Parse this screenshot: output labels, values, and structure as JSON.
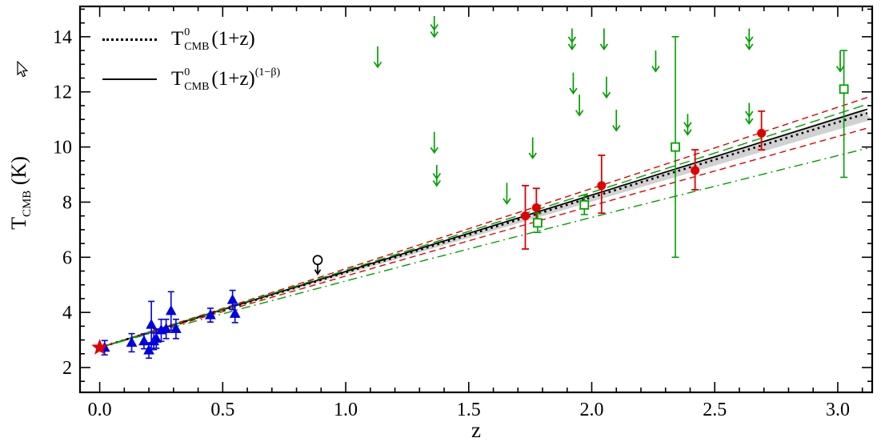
{
  "figure": {
    "x_axis_label": "z",
    "y_axis_label": {
      "base": "T",
      "sub": "CMB",
      "rest": " (K)"
    }
  },
  "legend": {
    "entries": [
      {
        "sample": "dotted",
        "base": "T",
        "sup": "0",
        "sub": "CMB",
        "factor": "(1+z)",
        "exponent": ""
      },
      {
        "sample": "solid",
        "base": "T",
        "sup": "0",
        "sub": "CMB",
        "factor": "(1+z)",
        "exponent": "(1−β)"
      }
    ]
  },
  "chart_data": {
    "type": "scatter",
    "title": "",
    "xlabel": "z",
    "ylabel": "T_CMB (K)",
    "xlim": [
      -0.08,
      3.14
    ],
    "ylim": [
      1.1,
      15.1
    ],
    "grid": false,
    "legend_position": "top-left",
    "x_ticks": {
      "major": [
        0.0,
        0.5,
        1.0,
        1.5,
        2.0,
        2.5,
        3.0
      ],
      "labels": [
        "0.0",
        "0.5",
        "1.0",
        "1.5",
        "2.0",
        "2.5",
        "3.0"
      ],
      "minor_step": 0.1
    },
    "y_ticks": {
      "major": [
        2,
        4,
        6,
        8,
        10,
        12,
        14
      ],
      "labels": [
        "2",
        "4",
        "6",
        "8",
        "10",
        "12",
        "14"
      ],
      "minor_step": 0.5
    },
    "T0": 2.725,
    "band": {
      "beta_lo": 0.018,
      "beta_hi": -0.012,
      "color": "#c6c6c6"
    },
    "lines": [
      {
        "name": "model-adiabatic-dotted",
        "label": "T0(1+z)",
        "beta": 0.0,
        "color": "#000000",
        "dash": "dotted",
        "width": 2.6
      },
      {
        "name": "model-bestfit-solid",
        "label": "T0(1+z)^(1-b)",
        "beta": -0.009,
        "color": "#000000",
        "dash": "solid",
        "width": 1.7
      },
      {
        "name": "red-upper-bound-dashed",
        "label": "",
        "beta": -0.035,
        "color": "#e00000",
        "dash": "dashed",
        "width": 1.4
      },
      {
        "name": "red-lower-bound-dashed",
        "label": "",
        "beta": 0.035,
        "color": "#e00000",
        "dash": "dashed",
        "width": 1.4
      },
      {
        "name": "green-upper-bound-dash",
        "label": "",
        "beta": -0.02,
        "color": "#00a000",
        "dash": "longdash",
        "width": 1.4
      },
      {
        "name": "green-lower-bound-dashdot",
        "label": "",
        "beta": 0.085,
        "color": "#00a000",
        "dash": "dashdot",
        "width": 1.4
      }
    ],
    "points": {
      "local_star": {
        "z": 0.0,
        "T": 2.725,
        "color": "#e00000"
      },
      "sz_clusters": [
        {
          "z": 0.02,
          "T": 2.72,
          "err": 0.26
        },
        {
          "z": 0.13,
          "T": 2.9,
          "err": 0.33
        },
        {
          "z": 0.18,
          "T": 2.95,
          "err": 0.27
        },
        {
          "z": 0.2,
          "T": 2.62,
          "err": 0.28
        },
        {
          "z": 0.21,
          "T": 3.55,
          "err": 0.85
        },
        {
          "z": 0.22,
          "T": 2.95,
          "err": 0.3
        },
        {
          "z": 0.23,
          "T": 3.05,
          "err": 0.35
        },
        {
          "z": 0.25,
          "T": 3.35,
          "err": 0.4
        },
        {
          "z": 0.27,
          "T": 3.4,
          "err": 0.35
        },
        {
          "z": 0.29,
          "T": 4.05,
          "err": 0.7
        },
        {
          "z": 0.31,
          "T": 3.4,
          "err": 0.35
        },
        {
          "z": 0.45,
          "T": 3.9,
          "err": 0.25
        },
        {
          "z": 0.54,
          "T": 4.45,
          "err": 0.35
        },
        {
          "z": 0.55,
          "T": 3.95,
          "err": 0.32
        }
      ],
      "co_absorption": [
        {
          "z": 1.73,
          "T": 7.5,
          "up": 1.1,
          "dn": 1.2
        },
        {
          "z": 1.775,
          "T": 7.8,
          "up": 0.7,
          "dn": 0.6
        },
        {
          "z": 2.04,
          "T": 8.6,
          "up": 1.1,
          "dn": 1.0
        },
        {
          "z": 2.42,
          "T": 9.15,
          "up": 0.75,
          "dn": 0.7
        },
        {
          "z": 2.69,
          "T": 10.5,
          "up": 0.8,
          "dn": 0.6
        }
      ],
      "ci_absorption": [
        {
          "z": 1.78,
          "T": 7.25,
          "up": 0.35,
          "dn": 0.35
        },
        {
          "z": 1.97,
          "T": 7.9,
          "up": 0.35,
          "dn": 0.35
        },
        {
          "z": 2.34,
          "T": 10.0,
          "up": 4.0,
          "dn": 4.0
        },
        {
          "z": 3.025,
          "T": 12.1,
          "up": 1.4,
          "dn": 3.2
        }
      ],
      "upper_limits_green": [
        {
          "z": 1.13,
          "T": 13.65,
          "double": false
        },
        {
          "z": 1.36,
          "T": 14.75,
          "double": true
        },
        {
          "z": 1.36,
          "T": 10.55,
          "double": false
        },
        {
          "z": 1.37,
          "T": 9.35,
          "double": true
        },
        {
          "z": 1.655,
          "T": 8.7,
          "double": false
        },
        {
          "z": 1.76,
          "T": 10.35,
          "double": false
        },
        {
          "z": 1.92,
          "T": 14.3,
          "double": true
        },
        {
          "z": 1.925,
          "T": 12.7,
          "double": false
        },
        {
          "z": 1.95,
          "T": 11.9,
          "double": false
        },
        {
          "z": 2.05,
          "T": 14.3,
          "double": false
        },
        {
          "z": 2.06,
          "T": 12.55,
          "double": false
        },
        {
          "z": 2.1,
          "T": 11.35,
          "double": false
        },
        {
          "z": 2.26,
          "T": 13.5,
          "double": false
        },
        {
          "z": 2.39,
          "T": 11.2,
          "double": true
        },
        {
          "z": 2.64,
          "T": 14.3,
          "double": true
        },
        {
          "z": 2.64,
          "T": 11.6,
          "double": true
        },
        {
          "z": 3.01,
          "T": 13.5,
          "double": false
        }
      ],
      "upper_limit_black": {
        "z": 0.886,
        "T": 5.9
      }
    },
    "colors": {
      "blue": "#0000e0",
      "red": "#e00000",
      "green": "#00a000",
      "black": "#000000"
    }
  }
}
